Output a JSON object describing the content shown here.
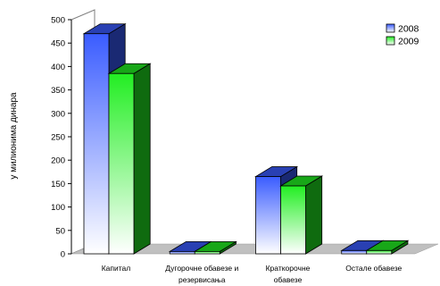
{
  "chart_data": {
    "type": "bar",
    "categories": [
      [
        "Капитал"
      ],
      [
        "Дугорочне обавезе и",
        "резервисања"
      ],
      [
        "Краткорочне",
        "обавезе"
      ],
      [
        "Остале обавезе"
      ]
    ],
    "series": [
      {
        "name": "2008",
        "values": [
          470,
          5,
          165,
          7
        ],
        "color": "#3a5cff"
      },
      {
        "name": "2009",
        "values": [
          385,
          5,
          145,
          7
        ],
        "color": "#22ee22"
      }
    ],
    "ylabel": "у милионима динара",
    "ylim": [
      0,
      500
    ],
    "yticks": [
      "0",
      "50",
      "100",
      "150",
      "200",
      "250",
      "300",
      "350",
      "400",
      "450",
      "500"
    ],
    "legend_position": "top-right",
    "grid": false,
    "style": "3d-bar"
  }
}
